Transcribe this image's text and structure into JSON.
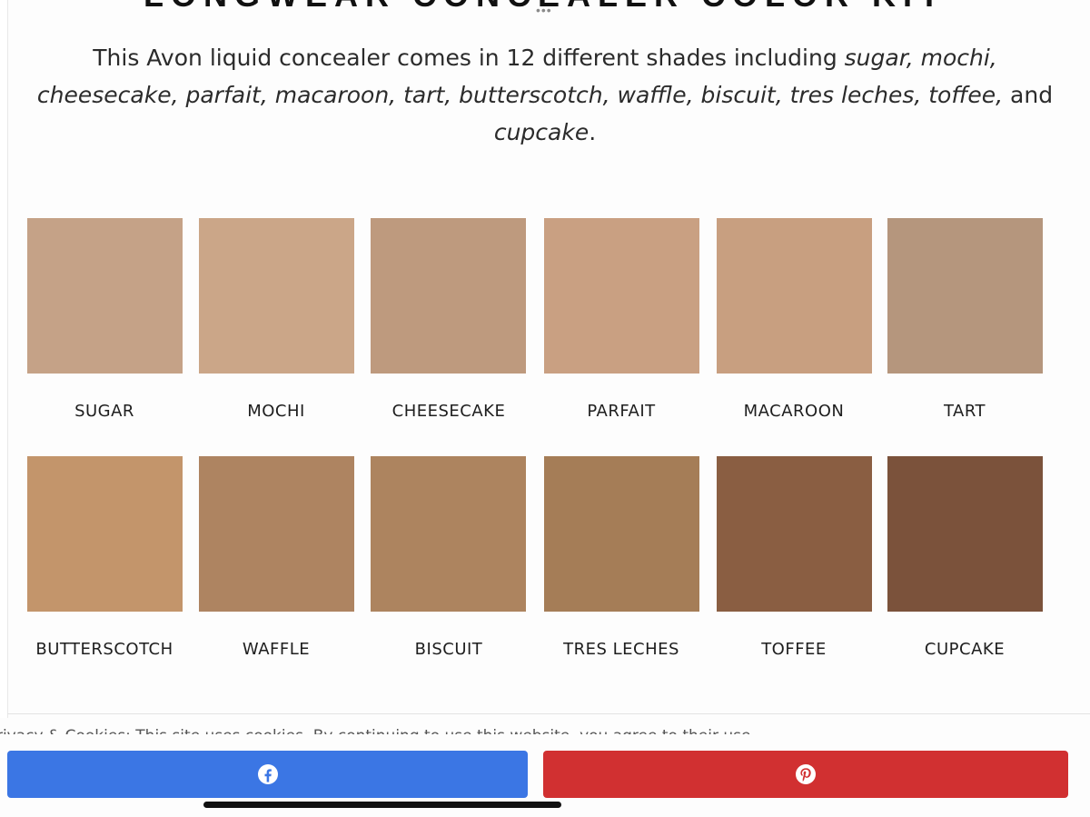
{
  "article": {
    "heading_partial": "LONGWEAR CONCEALER COLOR KIT",
    "intro_lead": "This Avon liquid concealer comes in 12 different shades including ",
    "intro_shades_a": "sugar, mochi, cheesecake, parfait, macaroon, tart, butterscotch, waffle, biscuit, tres leches, toffee,",
    "intro_and": " and ",
    "intro_shades_b": "cupcake",
    "intro_end": "."
  },
  "shades": [
    {
      "label": "SUGAR",
      "color": "#c5a287"
    },
    {
      "label": "MOCHI",
      "color": "#cba688"
    },
    {
      "label": "CHEESECAKE",
      "color": "#be9a7e"
    },
    {
      "label": "PARFAIT",
      "color": "#c9a082"
    },
    {
      "label": "MACAROON",
      "color": "#c89f80"
    },
    {
      "label": "TART",
      "color": "#b5967d"
    },
    {
      "label": "BUTTERSCOTCH",
      "color": "#c3956b"
    },
    {
      "label": "WAFFLE",
      "color": "#ae8461"
    },
    {
      "label": "BISCUIT",
      "color": "#ad845f"
    },
    {
      "label": "TRES LECHES",
      "color": "#a57d57"
    },
    {
      "label": "TOFFEE",
      "color": "#8a5e42"
    },
    {
      "label": "CUPCAKE",
      "color": "#7b523b"
    }
  ],
  "footer": {
    "cookie_text": "Privacy & Cookies: This site uses cookies. By continuing to use this website, you agree to their use.",
    "facebook_color": "#3b76e4",
    "pinterest_color": "#d13031",
    "facebook_icon": "facebook-icon",
    "pinterest_icon": "pinterest-icon"
  }
}
